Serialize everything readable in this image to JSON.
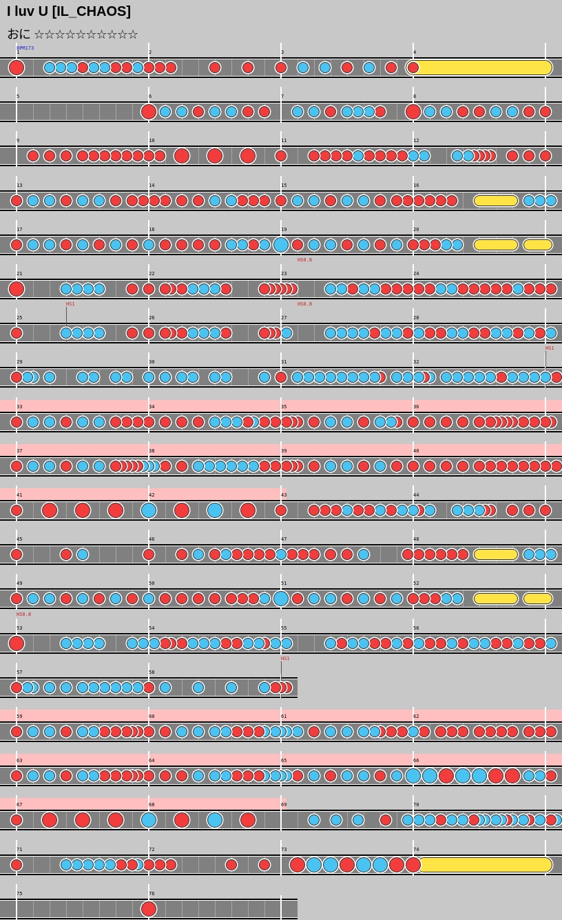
{
  "title": "I luv U [IL_CHAOS]",
  "subtitle": "おに ☆☆☆☆☆☆☆☆☆☆",
  "colors": {
    "background": "#c8c8c8",
    "lane": "#808080",
    "gogo": "#ffbfbf",
    "don": "#f33c3c",
    "ka": "#49c3f2",
    "roll": "#ffe445",
    "bpm_label": "#2222cc",
    "speed_label": "#cc2222"
  },
  "rows": [
    {
      "measures": [
        "1",
        "2",
        "3",
        "4"
      ],
      "notes": "D:0:b K:6 K:8 K:10 D:12 K:14 K:16 D:18 D:20 K:22 D:24 D:26 D:28 D:36 D:42 D:48 K:52 K:56 D:60 K:64 D:68 D:72 R:72-97:b",
      "ann": [
        {
          "slot": 0,
          "text": "BPM173",
          "color": "#2222cc"
        }
      ]
    },
    {
      "measures": [
        "5",
        "6",
        "7",
        "8"
      ],
      "notes": "D:24:b K:27 K:30 D:33 K:36 K:39 D:42 D:45 K:51 K:54 D:57 K:60 K:62 K:64 D:66 D:72:b K:75 K:78 D:81 D:84 K:87 K:90 D:93 D:96"
    },
    {
      "measures": [
        "9",
        "10",
        "11",
        "12"
      ],
      "notes": "D:3 D:6 D:9 D:12 D:14 D:16 D:18 D:20 D:22 D:24 D:26 D:30:b D:36:b D:42:b D:48 D:54 D:56 D:58 D:60 K:62 D:64 D:66 D:68 D:70 K:72 K:74 K:80 K:82 D:83 D:84 D:85 D:86 D:90 D:93 D:96"
    },
    {
      "measures": [
        "13",
        "14",
        "15",
        "16"
      ],
      "notes": "D:0 K:3 K:6 D:9 K:12 K:15 D:18 D:21 D:23 D:25 D:27 D:30 D:33 K:36 D:39 K:39 D:41 D:43 D:45 D:48 K:51 K:54 D:57 K:60 K:63 D:66 D:69 D:71 D:73 D:75 D:77 D:79 R:84-90 K:93 K:95 D:97 K:97"
    },
    {
      "measures": [
        "17",
        "18",
        "19",
        "20"
      ],
      "notes": "D:0 K:3 K:6 D:9 K:12 D:15 K:18 D:21 K:24 D:27 D:30 D:33 D:36 K:39 K:41 D:43 K:45 K:48:b D:51 K:54 K:57 D:60 K:63 D:66 K:69 D:72 D:74 D:76 K:78 K:80 R:84-90 R:93-97"
    },
    {
      "measures": [
        "21",
        "22",
        "23",
        "24"
      ],
      "notes": "D:0:b K:9 K:11 K:13 D:15 K:15 D:21 D:24 D:27 D:28 D:30 K:32 K:34 K:36 D:38 D:45 D:46 D:47 D:48 D:49 D:50 K:57 K:59 D:61 K:63 K:65 D:67 D:69 D:71 D:73 D:75 K:77 K:79 D:81 D:83 D:85 D:87 D:89 K:91 D:93 D:95 D:97",
      "ann": [
        {
          "slot": 51,
          "text": "HS0.8",
          "color": "#cc2222"
        }
      ]
    },
    {
      "measures": [
        "25",
        "26",
        "27",
        "28"
      ],
      "notes": "D:0 K:9 K:11 K:13 D:15 K:15 D:21 D:24 D:27 D:28 D:30 K:32 K:34 K:36 D:38 D:45 D:46 D:47 K:49 K:57 K:59 K:61 K:63 D:65 K:67 K:69 D:71 K:73 D:75 D:77 K:79 K:81 D:83 D:85 K:87 K:89 D:91 K:93 D:95 K:97",
      "ann": [
        {
          "slot": 9,
          "text": "HS1",
          "color": "#cc2222",
          "line": true
        },
        {
          "slot": 51,
          "text": "HS0.8",
          "color": "#cc2222"
        }
      ]
    },
    {
      "measures": [
        "29",
        "30",
        "31",
        "32"
      ],
      "notes": "D:0 K:2 K:3 K:6 K:12 K:14 K:18 K:20 K:24 D:27 K:27 K:30 K:32 K:36 K:38 K:45 D:48 K:51 K:53 K:55 K:57 K:59 K:61 K:63 K:65 D:66 K:69 K:71 K:73 K:75 D:74 K:78 K:80 K:82 D:84 K:84 K:86 D:88 K:90 K:92 D:94 K:94 D:96 K:96 D:98",
      "ann": [
        {
          "slot": 96,
          "text": "HS1",
          "color": "#cc2222",
          "line": true
        }
      ]
    },
    {
      "measures": [
        "33",
        "34",
        "35",
        "36"
      ],
      "notes": "D:0 K:3 K:6 D:9 K:12 K:15 D:18 D:20 D:22 D:24 D:27 D:30 D:33 K:36 K:38 K:40 D:42 K:43 D:45 D:47 D:49 D:50 D:51 D:54 K:57 K:60 D:63 K:66 K:68 D:69 D:72 D:75 D:78 D:81 D:84 D:86 D:87 D:88 D:89 D:90 D:92 D:94 D:96 D:97",
      "gogo": [
        0,
        100
      ]
    },
    {
      "measures": [
        "37",
        "38",
        "39",
        "40"
      ],
      "notes": "D:0 K:3 K:6 D:9 K:12 K:15 D:18 D:19 D:20 D:21 D:22 K:23 K:24 K:25 D:27 D:30 D:33 K:33 K:35 K:37 K:39 K:41 K:43 D:45 D:47 D:49 D:50 D:51 D:54 K:57 K:60 D:63 K:66 D:69 D:72 D:75 D:78 D:81 D:84 D:86 D:88 D:90 D:92 D:94 D:96 D:98",
      "gogo": [
        0,
        100
      ]
    },
    {
      "measures": [
        "41",
        "42",
        "43",
        "44"
      ],
      "notes": "D:0 D:6:b D:12:b D:18:b K:24:b D:30:b K:36:b D:42:b D:48 D:54 D:56 D:58 K:60 D:62 D:64 K:66 D:68 K:70 K:72 D:73 K:75 K:80 K:82 K:84 D:85 D:86 D:90 D:93 D:96",
      "gogo": [
        0,
        50
      ]
    },
    {
      "measures": [
        "45",
        "46",
        "47",
        "48"
      ],
      "notes": "D:0 D:9 K:12 D:24 D:30 K:33 D:36 K:38 D:40 D:42 D:44 D:46 K:48 D:50 D:52 D:54 D:57 D:60 K:63 D:71 D:73 D:75 D:77 D:79 D:81 R:84-90 K:93 K:95 D:97 K:97"
    },
    {
      "measures": [
        "49",
        "50",
        "51",
        "52"
      ],
      "notes": "D:0 K:3 K:6 D:9 K:12 D:15 K:18 D:21 K:24 D:27 D:30 D:33 D:36 K:39 D:39 D:41 D:43 K:45 K:48:b D:51 K:54 K:57 D:60 K:63 D:66 K:69 D:72 D:74 D:76 K:78 K:80 R:84-90 R:93-97"
    },
    {
      "measures": [
        "53",
        "54",
        "55",
        "56"
      ],
      "notes": "D:0:b K:9 K:11 K:13 D:15 K:15 K:21 K:23 K:25 D:27 D:28 D:30 K:32 K:34 K:36 D:38 D:40 K:42 K:44 D:45 K:47 K:49 K:57 D:59 K:61 K:63 D:65 D:67 K:69 D:71 K:73 D:75 D:77 K:79 D:81 K:83 K:85 D:87 D:89 K:91 D:93 D:95 K:97",
      "ann": [
        {
          "slot": 0,
          "text": "HS0.8",
          "color": "#cc2222"
        }
      ]
    },
    {
      "measures": [
        "57",
        "58"
      ],
      "notes": "D:0 K:2 K:3 K:6 K:9 K:12 K:14 K:16 K:18 K:20 K:22 D:24 K:27 K:33 K:39 K:45 D:47 D:48 D:49",
      "width": 432,
      "ann": [
        {
          "slot": 48,
          "text": "HS1",
          "color": "#cc2222",
          "line": true
        }
      ]
    },
    {
      "measures": [
        "59",
        "60",
        "61",
        "62"
      ],
      "notes": "D:0 K:3 K:6 D:9 K:12 K:14 D:16 D:18 D:20 D:21 D:22 D:24 D:27 K:30 K:33 K:36 K:38 D:40 D:42 D:44 K:45 K:47 K:48 K:49 K:51 D:54 K:57 K:60 K:63 K:65 D:66 D:68 D:70 K:72 D:74 D:77 D:79 D:81 D:84 D:86 D:88 D:90 D:93 D:95 D:97",
      "gogo": [
        0,
        100
      ]
    },
    {
      "measures": [
        "63",
        "64",
        "65",
        "66"
      ],
      "notes": "D:0 K:3 K:6 D:9 K:12 K:14 D:16 D:18 D:20 D:21 D:22 D:24 D:27 D:30 K:33 K:36 K:38 D:40 D:42 D:44 K:45 K:47 K:48 K:49 D:51 K:54 D:57 K:60 K:63 D:66 K:69 K:72:b K:75:b D:78:b K:81:b K:84:b D:87:b D:90:b K:93 K:95 D:97",
      "gogo": [
        0,
        100
      ]
    },
    {
      "measures": [
        "67",
        "68",
        "69",
        "70"
      ],
      "notes": "D:0 D:6:b D:12:b D:18:b K:24:b D:30:b K:36:b D:42:b K:54 K:58 K:62 D:67 K:71 K:73 K:75 D:77 K:79 K:81 D:83 K:84 K:85 K:87 K:88 D:89 K:90 K:92 D:93 K:95 D:97 K:98",
      "gogo": [
        0,
        50
      ]
    },
    {
      "measures": [
        "71",
        "72",
        "73",
        "74"
      ],
      "notes": "D:0 K:9 K:11 K:13 D:15 K:15 K:17 D:19 D:21 K:22 D:24 D:26 D:28 D:39 D:45 D:51:b K:54:b K:57:b D:60:b K:63:b K:66:b D:69:b D:72:b R:74-100:b"
    },
    {
      "measures": [
        "75",
        "76"
      ],
      "notes": "D:24:b",
      "width": 432
    }
  ]
}
